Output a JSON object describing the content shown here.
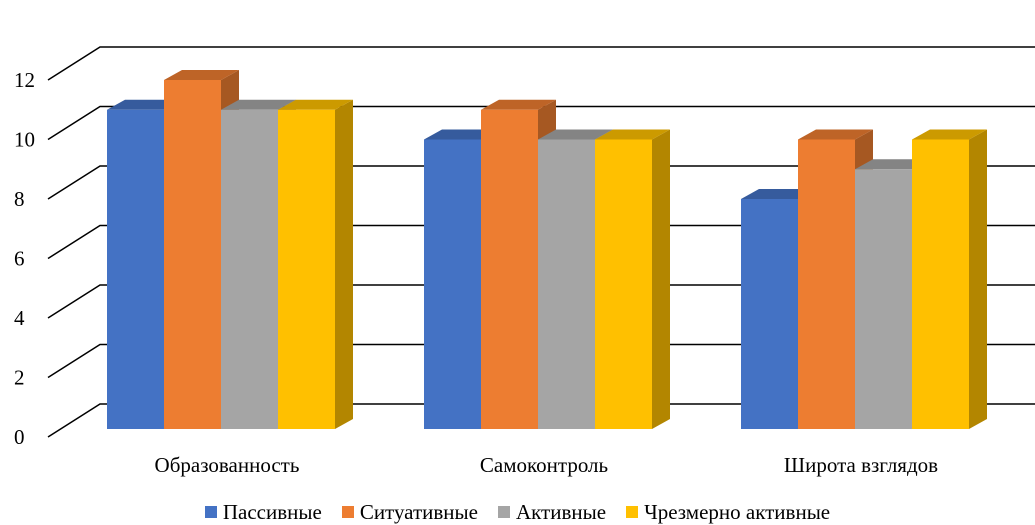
{
  "chart_data": {
    "type": "bar",
    "style": "3d-clustered-column",
    "categories": [
      "Образованность",
      "Самоконтроль",
      "Широта взглядов"
    ],
    "series": [
      {
        "name": "Пассивные",
        "values": [
          11,
          10,
          8
        ],
        "color": "#4472C4"
      },
      {
        "name": "Ситуативные",
        "values": [
          12,
          11,
          10
        ],
        "color": "#ED7D31"
      },
      {
        "name": "Активные",
        "values": [
          11,
          10,
          9
        ],
        "color": "#A5A5A5"
      },
      {
        "name": "Чрезмерно активные",
        "values": [
          11,
          10,
          10
        ],
        "color": "#FFC000"
      }
    ],
    "y_ticks": [
      "0",
      "2",
      "4",
      "6",
      "8",
      "10",
      "12"
    ],
    "ylim": [
      0,
      12
    ],
    "grid": true,
    "legend_position": "bottom"
  }
}
